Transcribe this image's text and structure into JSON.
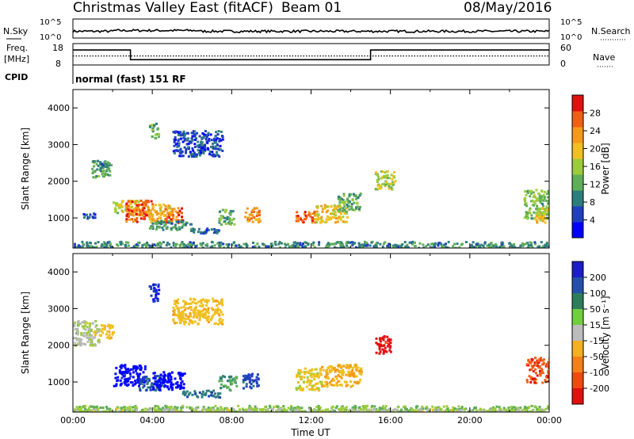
{
  "header": {
    "title": "Christmas Valley East (fitACF)",
    "beam": "Beam 01",
    "date": "08/May/2016"
  },
  "colors": {
    "scale": [
      "#0000ff",
      "#1f3fbf",
      "#2e7d7d",
      "#5fae58",
      "#9ccc3c",
      "#f0c020",
      "#f39a1a",
      "#f06014",
      "#e01010"
    ],
    "ground_scatter": "#b8b8b8"
  },
  "chart_data": [
    {
      "type": "line",
      "name": "nsky-panel",
      "left_label": "N.Sky",
      "right_label": "N.Search",
      "left_ticks": [
        "10^5",
        "10^0"
      ],
      "right_ticks": [
        "10^5",
        "10^0"
      ],
      "x_range": [
        0,
        24
      ]
    },
    {
      "type": "line",
      "name": "freq-panel",
      "left_label": "Freq.\n[MHz]",
      "right_label": "Nave",
      "left_ticks": [
        18,
        8
      ],
      "right_ticks": [
        60,
        0
      ],
      "ylim": [
        8,
        18
      ],
      "freq_steps": [
        {
          "x": [
            0,
            2.9
          ],
          "y": 15
        },
        {
          "x": [
            2.9,
            15.0
          ],
          "y": 10.5
        },
        {
          "x": [
            15.0,
            24
          ],
          "y": 15
        }
      ],
      "nave_level": 12.2
    },
    {
      "type": "table",
      "name": "cpid-panel",
      "label": "CPID",
      "text": "normal (fast) 151 RF"
    },
    {
      "type": "heatmap",
      "name": "power-panel",
      "ylabel": "Slant Range [km]",
      "yticks": [
        1000,
        2000,
        3000,
        4000
      ],
      "ylim": [
        180,
        4500
      ],
      "xlim": [
        0,
        24
      ],
      "colorbar": {
        "label": "Power [dB]",
        "ticks": [
          4,
          8,
          12,
          16,
          20,
          24,
          28
        ],
        "range": [
          0,
          32
        ]
      },
      "patches": [
        {
          "t": [
            0.5,
            1.3
          ],
          "r": [
            1000,
            1150
          ],
          "v": 4
        },
        {
          "t": [
            0.9,
            1.6
          ],
          "r": [
            2100,
            2600
          ],
          "v": 12
        },
        {
          "t": [
            1.3,
            1.9
          ],
          "r": [
            2150,
            2600
          ],
          "v": 10
        },
        {
          "t": [
            2.0,
            3.5
          ],
          "r": [
            1100,
            1500
          ],
          "v": 18
        },
        {
          "t": [
            2.6,
            4.0
          ],
          "r": [
            900,
            1500
          ],
          "v": 26
        },
        {
          "t": [
            3.7,
            5.0
          ],
          "r": [
            900,
            1400
          ],
          "v": 20
        },
        {
          "t": [
            4.6,
            5.5
          ],
          "r": [
            900,
            1300
          ],
          "v": 26
        },
        {
          "t": [
            3.8,
            6.0
          ],
          "r": [
            700,
            950
          ],
          "v": 10
        },
        {
          "t": [
            5.8,
            7.4
          ],
          "r": [
            600,
            750
          ],
          "v": 6
        },
        {
          "t": [
            7.3,
            8.1
          ],
          "r": [
            850,
            1250
          ],
          "v": 12
        },
        {
          "t": [
            8.6,
            9.4
          ],
          "r": [
            900,
            1300
          ],
          "v": 24
        },
        {
          "t": [
            3.8,
            4.3
          ],
          "r": [
            3200,
            3600
          ],
          "v": 12
        },
        {
          "t": [
            5.0,
            7.5
          ],
          "r": [
            2700,
            3400
          ],
          "v": 6
        },
        {
          "t": [
            11.2,
            12.2
          ],
          "r": [
            900,
            1200
          ],
          "v": 26
        },
        {
          "t": [
            12.2,
            13.8
          ],
          "r": [
            900,
            1400
          ],
          "v": 20
        },
        {
          "t": [
            13.3,
            14.5
          ],
          "r": [
            1200,
            1700
          ],
          "v": 12
        },
        {
          "t": [
            15.2,
            16.2
          ],
          "r": [
            1800,
            2300
          ],
          "v": 16
        },
        {
          "t": [
            22.7,
            24.0
          ],
          "r": [
            1000,
            1800
          ],
          "v": 14
        },
        {
          "t": [
            23.2,
            24.0
          ],
          "r": [
            900,
            1300
          ],
          "v": 20
        },
        {
          "t": [
            0.0,
            24.0
          ],
          "r": [
            200,
            380
          ],
          "v": 10
        }
      ]
    },
    {
      "type": "heatmap",
      "name": "velocity-panel",
      "ylabel": "Slant Range [km]",
      "yticks": [
        1000,
        2000,
        3000,
        4000
      ],
      "ylim": [
        180,
        4500
      ],
      "xlim": [
        0,
        24
      ],
      "xticks": [
        "00:00",
        "04:00",
        "08:00",
        "12:00",
        "16:00",
        "20:00",
        "00:00"
      ],
      "xlabel": "Time UT",
      "colorbar": {
        "label": "Velocity [m s⁻¹]",
        "ticks": [
          200,
          100,
          50,
          15,
          -15,
          -50,
          -100,
          -200
        ],
        "range": [
          -250,
          250
        ]
      },
      "patches": [
        {
          "t": [
            0.0,
            1.3
          ],
          "r": [
            2000,
            2700
          ],
          "v": 0
        },
        {
          "t": [
            1.3,
            2.0
          ],
          "r": [
            2200,
            2600
          ],
          "v": -60
        },
        {
          "t": [
            2.0,
            3.6
          ],
          "r": [
            900,
            1500
          ],
          "v": 220
        },
        {
          "t": [
            3.3,
            4.5
          ],
          "r": [
            800,
            1200
          ],
          "v": 150
        },
        {
          "t": [
            4.0,
            5.6
          ],
          "r": [
            800,
            1300
          ],
          "v": 230
        },
        {
          "t": [
            5.5,
            7.4
          ],
          "r": [
            600,
            800
          ],
          "v": 120
        },
        {
          "t": [
            7.3,
            8.2
          ],
          "r": [
            800,
            1200
          ],
          "v": 80
        },
        {
          "t": [
            8.5,
            9.3
          ],
          "r": [
            850,
            1250
          ],
          "v": 160
        },
        {
          "t": [
            3.8,
            4.3
          ],
          "r": [
            3200,
            3700
          ],
          "v": 180
        },
        {
          "t": [
            5.0,
            7.5
          ],
          "r": [
            2600,
            3300
          ],
          "v": -60
        },
        {
          "t": [
            11.2,
            12.5
          ],
          "r": [
            800,
            1400
          ],
          "v": -40
        },
        {
          "t": [
            12.5,
            14.5
          ],
          "r": [
            900,
            1500
          ],
          "v": -80
        },
        {
          "t": [
            15.2,
            16.0
          ],
          "r": [
            1800,
            2300
          ],
          "v": -220
        },
        {
          "t": [
            22.8,
            24.0
          ],
          "r": [
            1000,
            1700
          ],
          "v": -180
        },
        {
          "t": [
            0.0,
            24.0
          ],
          "r": [
            200,
            380
          ],
          "v": 30
        },
        {
          "t": [
            0.0,
            24.0
          ],
          "r": [
            200,
            300
          ],
          "v": 0
        }
      ]
    }
  ]
}
